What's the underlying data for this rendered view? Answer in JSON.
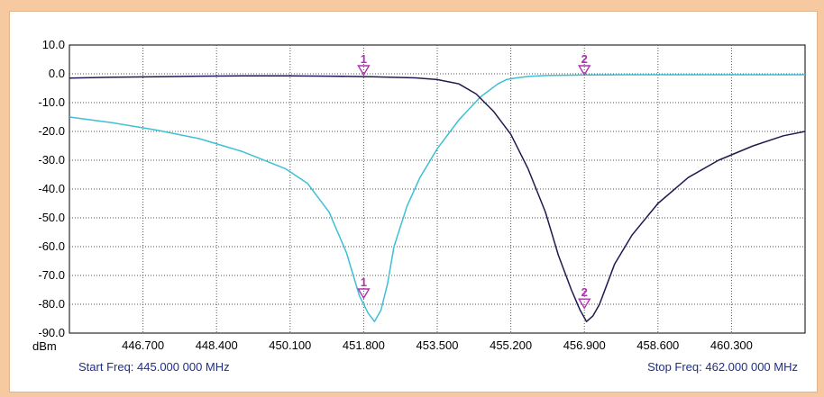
{
  "chart_data": {
    "type": "line",
    "ylabel": "dBm",
    "xlim": [
      445.0,
      462.0
    ],
    "ylim": [
      -90,
      10
    ],
    "y_ticks": [
      "10.0",
      "0.0",
      "-10.0",
      "-20.0",
      "-30.0",
      "-40.0",
      "-50.0",
      "-60.0",
      "-70.0",
      "-80.0",
      "-90.0"
    ],
    "x_ticks": [
      "446.700",
      "448.400",
      "450.100",
      "451.800",
      "453.500",
      "455.200",
      "456.900",
      "458.600",
      "460.300"
    ],
    "grid": true,
    "start_freq_label": "Start Freq: 445.000 000 MHz",
    "stop_freq_label": "Stop Freq: 462.000 000 MHz",
    "colors": {
      "series_cyan": "#3ec0d4",
      "series_navy": "#1e1b50",
      "marker": "#b030b0"
    },
    "series": [
      {
        "color": "#3ec0d4",
        "x": [
          445.0,
          446.0,
          447.0,
          448.0,
          449.0,
          450.0,
          450.5,
          451.0,
          451.4,
          451.7,
          451.9,
          452.05,
          452.2,
          452.35,
          452.5,
          452.8,
          453.1,
          453.5,
          454.0,
          454.5,
          454.9,
          455.1,
          455.3,
          455.6,
          456.0,
          457.0,
          458.0,
          459.0,
          460.0,
          461.0,
          462.0
        ],
        "y": [
          -15,
          -17,
          -19.5,
          -22.5,
          -27,
          -33,
          -38,
          -48,
          -62,
          -77,
          -83,
          -86,
          -82,
          -73,
          -60,
          -46,
          -36,
          -26,
          -16,
          -8,
          -3.5,
          -2,
          -1.5,
          -0.9,
          -0.6,
          -0.4,
          -0.3,
          -0.3,
          -0.3,
          -0.3,
          -0.3
        ]
      },
      {
        "color": "#1e1b50",
        "x": [
          445.0,
          446.0,
          447.0,
          448.0,
          449.0,
          450.0,
          451.0,
          452.0,
          453.0,
          453.5,
          454.0,
          454.4,
          454.8,
          455.2,
          455.6,
          456.0,
          456.3,
          456.6,
          456.8,
          456.95,
          457.1,
          457.25,
          457.4,
          457.6,
          458.0,
          458.6,
          459.3,
          460.0,
          460.8,
          461.5,
          462.0
        ],
        "y": [
          -1.5,
          -1.2,
          -1,
          -0.8,
          -0.7,
          -0.7,
          -0.8,
          -1,
          -1.4,
          -2,
          -3.5,
          -7,
          -13,
          -21,
          -33,
          -48,
          -63,
          -75,
          -82,
          -86,
          -84,
          -80,
          -74,
          -66,
          -56,
          -45,
          -36,
          -30,
          -25,
          -21.5,
          -20
        ]
      }
    ],
    "markers": [
      {
        "label": "1",
        "x": 451.8,
        "y": 0.0
      },
      {
        "label": "2",
        "x": 456.9,
        "y": 0.0
      },
      {
        "label": "1",
        "x": 451.8,
        "y": -77.5
      },
      {
        "label": "2",
        "x": 456.9,
        "y": -81.0
      }
    ]
  }
}
